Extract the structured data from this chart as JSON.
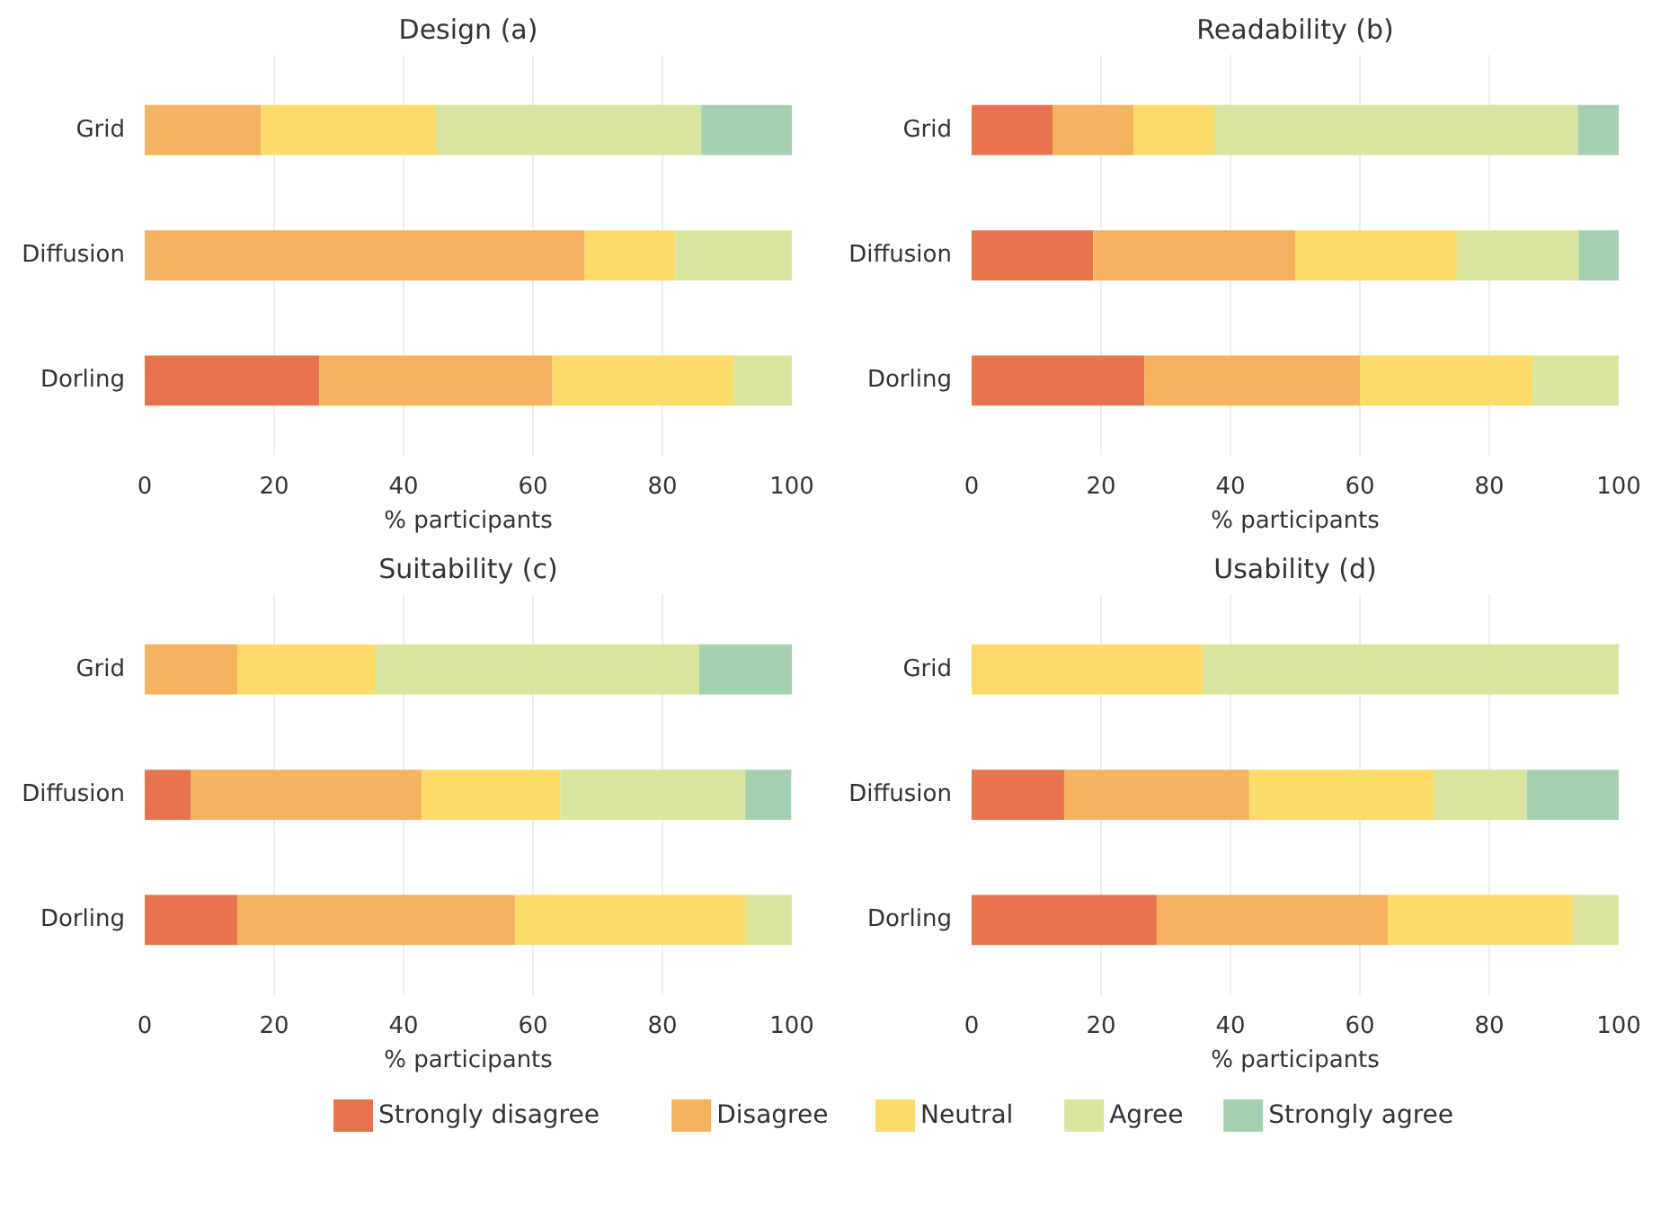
{
  "chart_data": [
    {
      "type": "bar",
      "orientation": "horizontal",
      "stacked": true,
      "title": "Design (a)",
      "xlabel": "% participants",
      "categories": [
        "Grid",
        "Diffusion",
        "Dorling"
      ],
      "xlim": [
        0,
        100
      ],
      "xticks": [
        0,
        20,
        40,
        60,
        80,
        100
      ],
      "grid": "x",
      "legend": "bottom",
      "series": [
        {
          "name": "Strongly disagree",
          "color": "#e8744f",
          "values": [
            null,
            null,
            27
          ]
        },
        {
          "name": "Disagree",
          "color": "#f5b25f",
          "values": [
            18,
            68,
            36
          ]
        },
        {
          "name": "Neutral",
          "color": "#fcdb6a",
          "values": [
            27,
            14,
            28
          ]
        },
        {
          "name": "Agree",
          "color": "#d9e59e",
          "values": [
            41,
            18,
            9
          ]
        },
        {
          "name": "Strongly agree",
          "color": "#a3d1b0",
          "values": [
            14,
            null,
            null
          ]
        }
      ]
    },
    {
      "type": "bar",
      "orientation": "horizontal",
      "stacked": true,
      "title": "Readability (b)",
      "xlabel": "% participants",
      "categories": [
        "Grid",
        "Diffusion",
        "Dorling"
      ],
      "xlim": [
        0,
        100
      ],
      "xticks": [
        0,
        20,
        40,
        60,
        80,
        100
      ],
      "grid": "x",
      "series": [
        {
          "color": "#e8744f",
          "values": [
            12.5,
            18.8,
            26.7
          ]
        },
        {
          "color": "#f5b25f",
          "values": [
            12.5,
            31.2,
            33.3
          ]
        },
        {
          "color": "#fcdb6a",
          "values": [
            12.5,
            25,
            26.7
          ]
        },
        {
          "color": "#d9e59e",
          "values": [
            56.2,
            18.8,
            13.3
          ]
        },
        {
          "color": "#a3d1b0",
          "values": [
            6.3,
            6.2,
            null
          ]
        }
      ]
    },
    {
      "type": "bar",
      "orientation": "horizontal",
      "stacked": true,
      "title": "Suitability (c)",
      "xlabel": "% participants",
      "categories": [
        "Grid",
        "Diffusion",
        "Dorling"
      ],
      "xlim": [
        0,
        100
      ],
      "xticks": [
        0,
        20,
        40,
        60,
        80,
        100
      ],
      "grid": "x",
      "series": [
        {
          "color": "#e8744f",
          "values": [
            null,
            7.1,
            14.3
          ]
        },
        {
          "color": "#f5b25f",
          "values": [
            14.3,
            35.7,
            42.9
          ]
        },
        {
          "color": "#fcdb6a",
          "values": [
            21.4,
            21.4,
            35.7
          ]
        },
        {
          "color": "#d9e59e",
          "values": [
            50,
            28.6,
            7.1
          ]
        },
        {
          "color": "#a3d1b0",
          "values": [
            14.3,
            7.1,
            null
          ]
        }
      ]
    },
    {
      "type": "bar",
      "orientation": "horizontal",
      "stacked": true,
      "title": "Usability (d)",
      "xlabel": "% participants",
      "categories": [
        "Grid",
        "Diffusion",
        "Dorling"
      ],
      "xlim": [
        0,
        100
      ],
      "xticks": [
        0,
        20,
        40,
        60,
        80,
        100
      ],
      "grid": "x",
      "series": [
        {
          "color": "#e8744f",
          "values": [
            null,
            14.3,
            28.6
          ]
        },
        {
          "color": "#f5b25f",
          "values": [
            null,
            28.6,
            35.7
          ]
        },
        {
          "color": "#fcdb6a",
          "values": [
            35.7,
            28.6,
            28.6
          ]
        },
        {
          "color": "#d9e59e",
          "values": [
            64.3,
            14.3,
            7.1
          ]
        },
        {
          "color": "#a3d1b0",
          "values": [
            null,
            14.3,
            null
          ]
        }
      ]
    }
  ]
}
